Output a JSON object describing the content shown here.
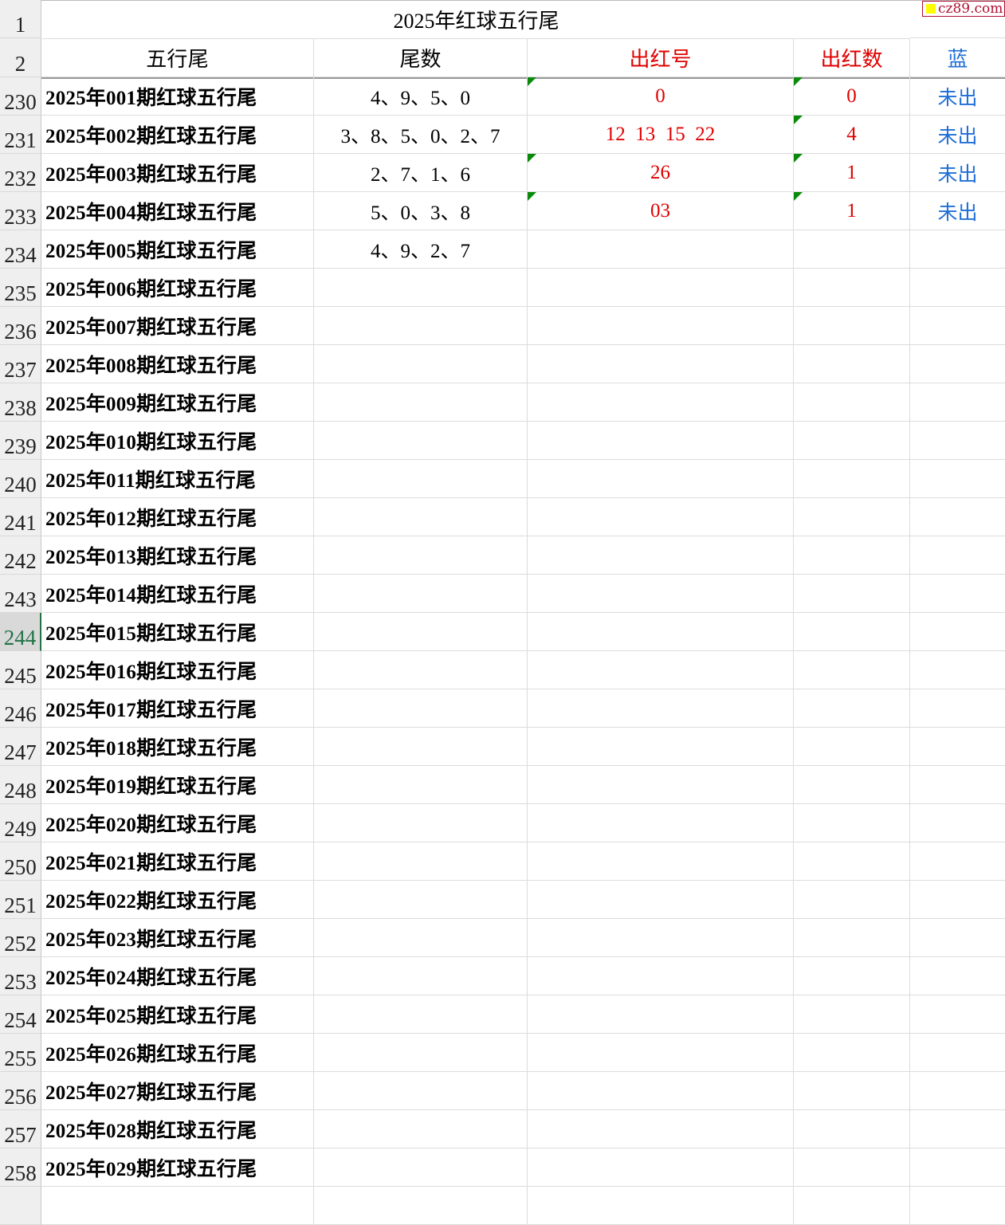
{
  "watermark": "cz89.com",
  "title_row": {
    "row_number": "1",
    "title": "2025年红球五行尾"
  },
  "header_row": {
    "row_number": "2",
    "columns": [
      "五行尾",
      "尾数",
      "出红号",
      "出红数",
      "蓝"
    ]
  },
  "colors": {
    "red_text": "#e00000",
    "blue_text": "#1f6fd6",
    "comment_marker": "#0a8a0a",
    "selected_row_header": "#217346"
  },
  "selected_row": "244",
  "rows": [
    {
      "row_number": "230",
      "name": "2025年001期红球五行尾",
      "tails": "4、9、5、0",
      "red_numbers": "0",
      "red_count": "0",
      "blue": "未出",
      "comment_marks": true
    },
    {
      "row_number": "231",
      "name": "2025年002期红球五行尾",
      "tails": "3、8、5、0、2、7",
      "red_numbers": "12  13  15  22",
      "red_count": "4",
      "blue": "未出",
      "comment_marks": true
    },
    {
      "row_number": "232",
      "name": "2025年003期红球五行尾",
      "tails": "2、7、1、6",
      "red_numbers": "26",
      "red_count": "1",
      "blue": "未出",
      "comment_marks": true
    },
    {
      "row_number": "233",
      "name": "2025年004期红球五行尾",
      "tails": "5、0、3、8",
      "red_numbers": "03",
      "red_count": "1",
      "blue": "未出",
      "comment_marks": true
    },
    {
      "row_number": "234",
      "name": "2025年005期红球五行尾",
      "tails": "4、9、2、7",
      "red_numbers": "",
      "red_count": "",
      "blue": ""
    },
    {
      "row_number": "235",
      "name": "2025年006期红球五行尾"
    },
    {
      "row_number": "236",
      "name": "2025年007期红球五行尾"
    },
    {
      "row_number": "237",
      "name": "2025年008期红球五行尾"
    },
    {
      "row_number": "238",
      "name": "2025年009期红球五行尾"
    },
    {
      "row_number": "239",
      "name": "2025年010期红球五行尾"
    },
    {
      "row_number": "240",
      "name": "2025年011期红球五行尾"
    },
    {
      "row_number": "241",
      "name": "2025年012期红球五行尾"
    },
    {
      "row_number": "242",
      "name": "2025年013期红球五行尾"
    },
    {
      "row_number": "243",
      "name": "2025年014期红球五行尾"
    },
    {
      "row_number": "244",
      "name": "2025年015期红球五行尾"
    },
    {
      "row_number": "245",
      "name": "2025年016期红球五行尾"
    },
    {
      "row_number": "246",
      "name": "2025年017期红球五行尾"
    },
    {
      "row_number": "247",
      "name": "2025年018期红球五行尾"
    },
    {
      "row_number": "248",
      "name": "2025年019期红球五行尾"
    },
    {
      "row_number": "249",
      "name": "2025年020期红球五行尾"
    },
    {
      "row_number": "250",
      "name": "2025年021期红球五行尾"
    },
    {
      "row_number": "251",
      "name": "2025年022期红球五行尾"
    },
    {
      "row_number": "252",
      "name": "2025年023期红球五行尾"
    },
    {
      "row_number": "253",
      "name": "2025年024期红球五行尾"
    },
    {
      "row_number": "254",
      "name": "2025年025期红球五行尾"
    },
    {
      "row_number": "255",
      "name": "2025年026期红球五行尾"
    },
    {
      "row_number": "256",
      "name": "2025年027期红球五行尾"
    },
    {
      "row_number": "257",
      "name": "2025年028期红球五行尾"
    },
    {
      "row_number": "258",
      "name": "2025年029期红球五行尾"
    }
  ]
}
